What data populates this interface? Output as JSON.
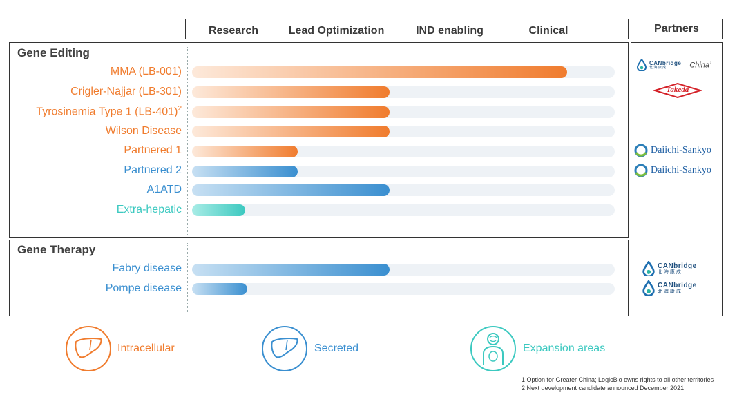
{
  "header": {
    "stages": [
      "Research",
      "Lead Optimization",
      "IND enabling",
      "Clinical"
    ],
    "partners_title": "Partners"
  },
  "colors": {
    "orange": "#f07c2e",
    "blue": "#3a8fd0",
    "teal": "#3cc9c0",
    "track": "#eef2f6"
  },
  "chart_data": {
    "type": "bar",
    "title": "",
    "stage_scale": [
      "Research",
      "Lead Optimization",
      "IND enabling",
      "Clinical"
    ],
    "xlim": [
      0,
      4
    ],
    "sections": [
      {
        "name": "Gene Editing",
        "rows": [
          {
            "label": "MMA (LB-001)",
            "sup": "",
            "progress": 3.55,
            "color": "orange",
            "partner": "CANbridge China"
          },
          {
            "label": "Crigler-Najjar (LB-301)",
            "sup": "",
            "progress": 1.87,
            "color": "orange",
            "partner": "Takeda"
          },
          {
            "label": "Tyrosinemia Type 1 (LB-401)",
            "sup": "2",
            "progress": 1.87,
            "color": "orange",
            "partner": ""
          },
          {
            "label": "Wilson Disease",
            "sup": "",
            "progress": 1.87,
            "color": "orange",
            "partner": ""
          },
          {
            "label": "Partnered 1",
            "sup": "",
            "progress": 1.0,
            "color": "orange",
            "partner": "Daiichi-Sankyo"
          },
          {
            "label": "Partnered 2",
            "sup": "",
            "progress": 1.0,
            "color": "blue",
            "partner": "Daiichi-Sankyo"
          },
          {
            "label": "A1ATD",
            "sup": "",
            "progress": 1.87,
            "color": "blue",
            "partner": ""
          },
          {
            "label": "Extra-hepatic",
            "sup": "",
            "progress": 0.5,
            "color": "teal",
            "partner": ""
          }
        ]
      },
      {
        "name": "Gene Therapy",
        "rows": [
          {
            "label": "Fabry disease",
            "sup": "",
            "progress": 1.87,
            "color": "blue",
            "partner": "CANbridge"
          },
          {
            "label": "Pompe disease",
            "sup": "",
            "progress": 0.52,
            "color": "blue",
            "partner": "CANbridge"
          }
        ]
      }
    ]
  },
  "partners": {
    "canbridge_latin": "CANbridge",
    "canbridge_chinese": "北 海 康 成",
    "china_text": "China",
    "china_sup": "1",
    "takeda": "Takeda",
    "daiichi": "Daiichi-Sankyo"
  },
  "legend": [
    {
      "label": "Intracellular",
      "color": "orange",
      "icon": "liver-icon"
    },
    {
      "label": "Secreted",
      "color": "blue",
      "icon": "liver-icon"
    },
    {
      "label": "Expansion areas",
      "color": "teal",
      "icon": "body-icon"
    }
  ],
  "footnotes": [
    "1 Option for Greater China; LogicBio owns rights to all other territories",
    "2 Next development candidate announced December 2021"
  ]
}
